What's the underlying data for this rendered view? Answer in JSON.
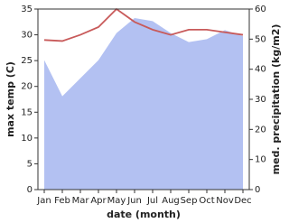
{
  "chart_data": {
    "type": "line",
    "x_label": "date (month)",
    "y_label": "max temp (C)",
    "y2_label": "med. precipitation (kg/m2)",
    "categories": [
      "Jan",
      "Feb",
      "Mar",
      "Apr",
      "May",
      "Jun",
      "Jul",
      "Aug",
      "Sep",
      "Oct",
      "Nov",
      "Dec"
    ],
    "ylim": [
      0,
      35
    ],
    "yticks": [
      0,
      5,
      10,
      15,
      20,
      25,
      30,
      35
    ],
    "y2lim": [
      0,
      60
    ],
    "y2ticks": [
      0,
      10,
      20,
      30,
      40,
      50,
      60
    ],
    "series": [
      {
        "name": "med. precipitation",
        "type": "area",
        "axis": "y2",
        "color": "#b3c1f2",
        "values": [
          43,
          31,
          37,
          43,
          52,
          57,
          56,
          52,
          49,
          50,
          53,
          51
        ]
      },
      {
        "name": "max temp",
        "type": "line",
        "axis": "y",
        "color": "#c85a5a",
        "values": [
          29,
          28.8,
          30,
          31.5,
          35,
          32.5,
          31,
          30,
          31,
          31,
          30.5,
          30
        ]
      }
    ]
  }
}
